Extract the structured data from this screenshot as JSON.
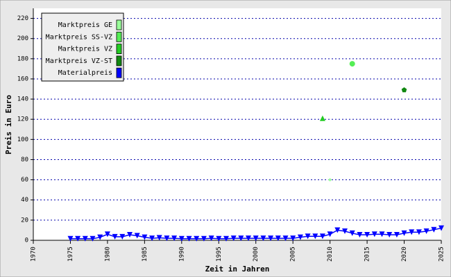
{
  "chart_data": {
    "type": "line",
    "x_label": "Zeit in Jahren",
    "y_label": "Preis in Euro",
    "xlim": [
      1970,
      2025
    ],
    "xticks": [
      1970,
      1975,
      1980,
      1985,
      1990,
      1995,
      2000,
      2005,
      2010,
      2015,
      2020,
      2025
    ],
    "ylim": [
      0,
      230
    ],
    "yticks": [
      0,
      20,
      40,
      60,
      80,
      100,
      120,
      140,
      160,
      180,
      200,
      220
    ],
    "grid": true,
    "legend": "upper left",
    "series": [
      {
        "name": "Marktpreis GE",
        "color": "#99ff99",
        "marker": "diamond",
        "line": false,
        "x": [
          2010
        ],
        "values": [
          60
        ]
      },
      {
        "name": "Marktpreis SS-VZ",
        "color": "#55ee55",
        "marker": "circle",
        "line": false,
        "x": [
          2013
        ],
        "values": [
          175
        ]
      },
      {
        "name": "Marktpreis VZ",
        "color": "#22cc22",
        "marker": "triangle-up",
        "line": false,
        "x": [
          2009
        ],
        "values": [
          121
        ]
      },
      {
        "name": "Marktpreis VZ-ST",
        "color": "#118811",
        "marker": "pentagon",
        "line": false,
        "x": [
          2020
        ],
        "values": [
          149
        ]
      },
      {
        "name": "Materialpreis",
        "color": "#0000ff",
        "marker": "triangle-down",
        "line": true,
        "x": [
          1975,
          1976,
          1977,
          1978,
          1979,
          1980,
          1981,
          1982,
          1983,
          1984,
          1985,
          1986,
          1987,
          1988,
          1989,
          1990,
          1991,
          1992,
          1993,
          1994,
          1995,
          1996,
          1997,
          1998,
          1999,
          2000,
          2001,
          2002,
          2003,
          2004,
          2005,
          2006,
          2007,
          2008,
          2009,
          2010,
          2011,
          2012,
          2013,
          2014,
          2015,
          2016,
          2017,
          2018,
          2019,
          2020,
          2021,
          2022,
          2023,
          2024,
          2025
        ],
        "values": [
          1.5,
          1.5,
          1.5,
          1.5,
          3,
          6,
          3.5,
          3.5,
          5.5,
          4.5,
          3,
          2,
          2.5,
          2,
          2,
          1.5,
          1.5,
          1.5,
          1.5,
          2,
          1.5,
          1.5,
          2,
          2,
          2,
          2,
          2,
          2,
          2,
          2,
          2,
          3,
          4,
          4,
          4,
          6,
          10,
          9,
          7,
          5.5,
          5.5,
          6,
          6,
          5.5,
          5.5,
          7,
          8,
          8,
          9,
          10.5,
          12
        ]
      }
    ]
  }
}
